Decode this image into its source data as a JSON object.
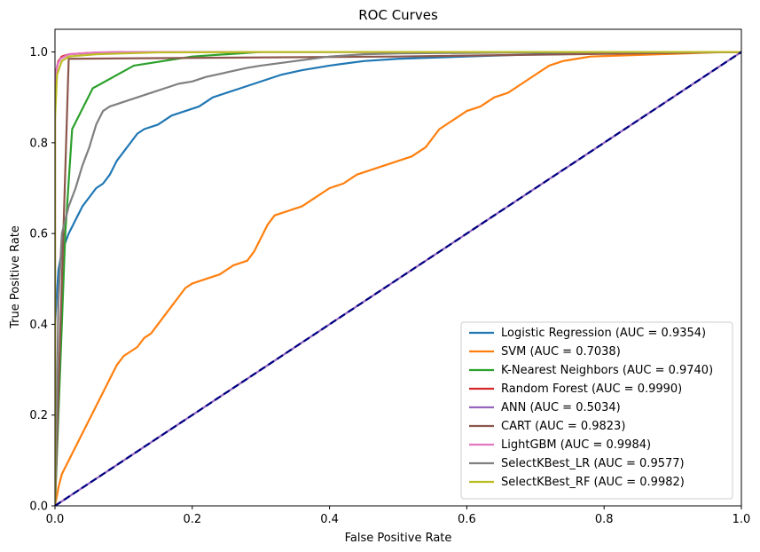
{
  "chart_data": {
    "type": "line",
    "title": "ROC Curves",
    "xlabel": "False Positive Rate",
    "ylabel": "True Positive Rate",
    "xlim": [
      0.0,
      1.0
    ],
    "ylim": [
      0.0,
      1.05
    ],
    "xticks": [
      "0.0",
      "0.2",
      "0.4",
      "0.6",
      "0.8",
      "1.0"
    ],
    "yticks": [
      "0.0",
      "0.2",
      "0.4",
      "0.6",
      "0.8",
      "1.0"
    ],
    "grid": false,
    "legend_position": "lower-right",
    "series": [
      {
        "name": "Logistic Regression (AUC = 0.9354)",
        "color": "#1f77b4",
        "points": [
          [
            0,
            0
          ],
          [
            0,
            0.4
          ],
          [
            0.005,
            0.52
          ],
          [
            0.01,
            0.56
          ],
          [
            0.02,
            0.6
          ],
          [
            0.03,
            0.63
          ],
          [
            0.04,
            0.66
          ],
          [
            0.05,
            0.68
          ],
          [
            0.06,
            0.7
          ],
          [
            0.07,
            0.71
          ],
          [
            0.08,
            0.73
          ],
          [
            0.09,
            0.76
          ],
          [
            0.1,
            0.78
          ],
          [
            0.11,
            0.8
          ],
          [
            0.12,
            0.82
          ],
          [
            0.13,
            0.83
          ],
          [
            0.15,
            0.84
          ],
          [
            0.17,
            0.86
          ],
          [
            0.19,
            0.87
          ],
          [
            0.21,
            0.88
          ],
          [
            0.23,
            0.9
          ],
          [
            0.25,
            0.91
          ],
          [
            0.27,
            0.92
          ],
          [
            0.29,
            0.93
          ],
          [
            0.31,
            0.94
          ],
          [
            0.33,
            0.95
          ],
          [
            0.36,
            0.96
          ],
          [
            0.4,
            0.97
          ],
          [
            0.45,
            0.98
          ],
          [
            0.5,
            0.985
          ],
          [
            0.6,
            0.99
          ],
          [
            0.7,
            0.995
          ],
          [
            0.85,
            0.998
          ],
          [
            1,
            1
          ]
        ]
      },
      {
        "name": "SVM (AUC = 0.7038)",
        "color": "#ff7f0e",
        "points": [
          [
            0,
            0
          ],
          [
            0.005,
            0.04
          ],
          [
            0.01,
            0.07
          ],
          [
            0.02,
            0.1
          ],
          [
            0.03,
            0.13
          ],
          [
            0.04,
            0.16
          ],
          [
            0.05,
            0.19
          ],
          [
            0.06,
            0.22
          ],
          [
            0.07,
            0.25
          ],
          [
            0.08,
            0.28
          ],
          [
            0.09,
            0.31
          ],
          [
            0.1,
            0.33
          ],
          [
            0.11,
            0.34
          ],
          [
            0.12,
            0.35
          ],
          [
            0.13,
            0.37
          ],
          [
            0.14,
            0.38
          ],
          [
            0.15,
            0.4
          ],
          [
            0.16,
            0.42
          ],
          [
            0.17,
            0.44
          ],
          [
            0.18,
            0.46
          ],
          [
            0.19,
            0.48
          ],
          [
            0.2,
            0.49
          ],
          [
            0.22,
            0.5
          ],
          [
            0.24,
            0.51
          ],
          [
            0.25,
            0.52
          ],
          [
            0.26,
            0.53
          ],
          [
            0.28,
            0.54
          ],
          [
            0.29,
            0.56
          ],
          [
            0.3,
            0.59
          ],
          [
            0.31,
            0.62
          ],
          [
            0.32,
            0.64
          ],
          [
            0.34,
            0.65
          ],
          [
            0.36,
            0.66
          ],
          [
            0.38,
            0.68
          ],
          [
            0.4,
            0.7
          ],
          [
            0.42,
            0.71
          ],
          [
            0.44,
            0.73
          ],
          [
            0.46,
            0.74
          ],
          [
            0.48,
            0.75
          ],
          [
            0.5,
            0.76
          ],
          [
            0.52,
            0.77
          ],
          [
            0.54,
            0.79
          ],
          [
            0.56,
            0.83
          ],
          [
            0.58,
            0.85
          ],
          [
            0.6,
            0.87
          ],
          [
            0.62,
            0.88
          ],
          [
            0.64,
            0.9
          ],
          [
            0.66,
            0.91
          ],
          [
            0.68,
            0.93
          ],
          [
            0.7,
            0.95
          ],
          [
            0.72,
            0.97
          ],
          [
            0.74,
            0.98
          ],
          [
            0.76,
            0.985
          ],
          [
            0.78,
            0.99
          ],
          [
            0.82,
            0.992
          ],
          [
            0.88,
            0.995
          ],
          [
            0.92,
            0.997
          ],
          [
            0.96,
            0.999
          ],
          [
            1,
            1
          ]
        ]
      },
      {
        "name": "K-Nearest Neighbors (AUC = 0.9740)",
        "color": "#2ca02c",
        "points": [
          [
            0,
            0
          ],
          [
            0.015,
            0.6
          ],
          [
            0.025,
            0.83
          ],
          [
            0.055,
            0.92
          ],
          [
            0.115,
            0.97
          ],
          [
            0.2,
            0.99
          ],
          [
            0.3,
            1.0
          ],
          [
            1,
            1
          ]
        ]
      },
      {
        "name": "Random Forest (AUC = 0.9990)",
        "color": "#d62728",
        "points": [
          [
            0,
            0
          ],
          [
            0,
            0.9
          ],
          [
            0.002,
            0.96
          ],
          [
            0.005,
            0.98
          ],
          [
            0.01,
            0.99
          ],
          [
            0.02,
            0.995
          ],
          [
            0.05,
            0.998
          ],
          [
            0.1,
            1.0
          ],
          [
            1,
            1
          ]
        ]
      },
      {
        "name": "ANN (AUC = 0.5034)",
        "color": "#9467bd",
        "points": [
          [
            0,
            0
          ],
          [
            1,
            1
          ]
        ]
      },
      {
        "name": "CART (AUC = 0.9823)",
        "color": "#8c564b",
        "points": [
          [
            0,
            0
          ],
          [
            0.02,
            0.985
          ],
          [
            0.5,
            0.99
          ],
          [
            1,
            1
          ]
        ]
      },
      {
        "name": "LightGBM (AUC = 0.9984)",
        "color": "#e377c2",
        "points": [
          [
            0,
            0
          ],
          [
            0,
            0.93
          ],
          [
            0.003,
            0.97
          ],
          [
            0.008,
            0.985
          ],
          [
            0.02,
            0.995
          ],
          [
            0.06,
            0.999
          ],
          [
            0.1,
            1.0
          ],
          [
            1,
            1
          ]
        ]
      },
      {
        "name": "SelectKBest_LR (AUC = 0.9577)",
        "color": "#7f7f7f",
        "points": [
          [
            0,
            0
          ],
          [
            0.005,
            0.45
          ],
          [
            0.01,
            0.6
          ],
          [
            0.02,
            0.66
          ],
          [
            0.03,
            0.7
          ],
          [
            0.04,
            0.75
          ],
          [
            0.05,
            0.79
          ],
          [
            0.06,
            0.84
          ],
          [
            0.07,
            0.87
          ],
          [
            0.08,
            0.88
          ],
          [
            0.1,
            0.89
          ],
          [
            0.12,
            0.9
          ],
          [
            0.14,
            0.91
          ],
          [
            0.16,
            0.92
          ],
          [
            0.18,
            0.93
          ],
          [
            0.2,
            0.935
          ],
          [
            0.22,
            0.945
          ],
          [
            0.25,
            0.955
          ],
          [
            0.28,
            0.965
          ],
          [
            0.3,
            0.97
          ],
          [
            0.35,
            0.98
          ],
          [
            0.4,
            0.99
          ],
          [
            0.45,
            0.995
          ],
          [
            0.5,
            0.997
          ],
          [
            0.7,
            0.999
          ],
          [
            1,
            1
          ]
        ]
      },
      {
        "name": "SelectKBest_RF (AUC = 0.9982)",
        "color": "#bcbd22",
        "points": [
          [
            0,
            0
          ],
          [
            0,
            0.85
          ],
          [
            0.003,
            0.95
          ],
          [
            0.01,
            0.98
          ],
          [
            0.02,
            0.99
          ],
          [
            0.06,
            0.995
          ],
          [
            0.15,
            0.999
          ],
          [
            0.3,
            1.0
          ],
          [
            1,
            1
          ]
        ]
      }
    ],
    "reference_line": {
      "points": [
        [
          0,
          0
        ],
        [
          1,
          1
        ]
      ],
      "color": "#000080",
      "style": "dashed"
    }
  }
}
